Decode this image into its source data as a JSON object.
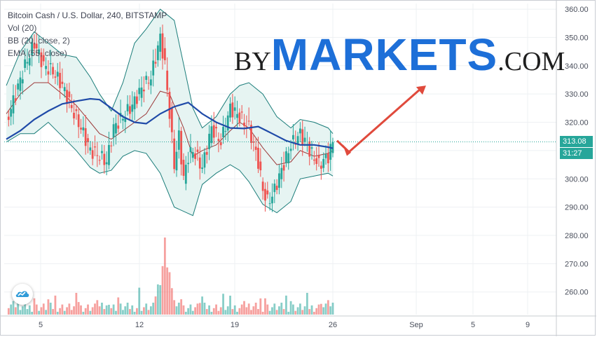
{
  "legend": {
    "title": "Bitcoin Cash / U.S. Dollar, 240, BITSTAMP",
    "vol": "Vol (20)",
    "bb": "BB (20, close, 2)",
    "ema": "EMA (55, close)"
  },
  "brand": {
    "by": "BY",
    "markets": "MARKETS",
    "com": ".COM"
  },
  "price_tag": {
    "price": "313.08",
    "countdown": "31:27",
    "color": "#26a69a"
  },
  "colors": {
    "up": "#26a69a",
    "down": "#ef5350",
    "ema": "#1f4aa8",
    "bb_mid": "#9c3a3a",
    "bb_band": "#1b7d7a",
    "bb_fill": "#e6f4f2",
    "arrow": "#e04a3c",
    "dotted": "#26a69a"
  },
  "chart_data": {
    "type": "candlestick",
    "title": "Bitcoin Cash / U.S. Dollar, 240, BITSTAMP",
    "ylim": [
      252,
      362
    ],
    "y_ticks": [
      "360.00",
      "350.00",
      "340.00",
      "330.00",
      "320.00",
      "310.00",
      "300.00",
      "290.00",
      "280.00",
      "270.00",
      "260.00"
    ],
    "x_ticks": [
      "5",
      "12",
      "19",
      "26",
      "Sep",
      "5",
      "9"
    ],
    "last_price": 313.08,
    "series": [
      {
        "name": "EMA (55, close)",
        "type": "line",
        "x": [
          0,
          6,
          12,
          18,
          24,
          30,
          36,
          40,
          45,
          50,
          55,
          60,
          66,
          72,
          78,
          84,
          90,
          96,
          102,
          108,
          114,
          120,
          126,
          132,
          138,
          140
        ],
        "values": [
          314,
          317,
          321,
          324,
          326.5,
          327.5,
          328.3,
          328,
          325,
          322,
          320,
          319.5,
          323,
          325.5,
          327,
          323,
          320,
          318,
          317.8,
          318.5,
          316,
          313.5,
          312,
          312,
          311.2,
          310.8
        ]
      },
      {
        "name": "BB upper",
        "type": "line",
        "x": [
          0,
          6,
          12,
          18,
          24,
          30,
          36,
          40,
          45,
          50,
          55,
          60,
          66,
          72,
          80,
          84,
          90,
          96,
          100,
          104,
          110,
          116,
          122,
          126,
          132,
          138,
          140
        ],
        "values": [
          333,
          345,
          352,
          348,
          344,
          343,
          336,
          330,
          324,
          334,
          348,
          353,
          360,
          356,
          325,
          318,
          322,
          330,
          333,
          334,
          330,
          322,
          318,
          321,
          320,
          318,
          316
        ]
      },
      {
        "name": "BB lower",
        "type": "line",
        "x": [
          0,
          6,
          12,
          18,
          24,
          30,
          36,
          40,
          45,
          50,
          55,
          60,
          66,
          72,
          80,
          84,
          90,
          96,
          100,
          104,
          110,
          116,
          122,
          126,
          132,
          138,
          140
        ],
        "values": [
          313,
          316,
          316,
          320,
          315,
          310,
          304,
          302,
          303,
          308,
          310,
          309,
          302,
          290,
          287,
          298,
          302,
          305,
          303,
          299,
          291,
          288,
          292,
          300,
          301,
          302,
          301
        ]
      },
      {
        "name": "BB basis",
        "type": "line",
        "x": [
          0,
          6,
          12,
          18,
          24,
          30,
          36,
          40,
          45,
          50,
          55,
          60,
          66,
          70,
          76,
          80,
          84,
          90,
          96,
          100,
          104,
          110,
          116,
          122,
          126,
          132,
          138,
          140
        ],
        "values": [
          323,
          330,
          334,
          334,
          330,
          326,
          320,
          316,
          314,
          317,
          320,
          323,
          331,
          330,
          318,
          308,
          310,
          312,
          317,
          320,
          318,
          311,
          305,
          306,
          310,
          308,
          309,
          310
        ]
      },
      {
        "name": "Close",
        "type": "line",
        "x": [
          0,
          4,
          8,
          12,
          16,
          20,
          24,
          28,
          32,
          36,
          40,
          43,
          46,
          50,
          54,
          58,
          62,
          66,
          68,
          70,
          72,
          74,
          76,
          78,
          80,
          84,
          88,
          92,
          96,
          100,
          104,
          108,
          110,
          112,
          114,
          118,
          122,
          126,
          130,
          134,
          138,
          140
        ],
        "values": [
          320,
          330,
          340,
          348,
          340,
          338,
          333,
          325,
          318,
          310,
          308,
          306,
          318,
          322,
          326,
          332,
          336,
          350,
          340,
          323,
          305,
          315,
          300,
          308,
          310,
          304,
          318,
          313,
          325,
          322,
          318,
          306,
          296,
          292,
          294,
          303,
          312,
          316,
          310,
          305,
          308,
          313
        ]
      }
    ],
    "volume": {
      "note": "bars at bottom, peak around x=68"
    }
  }
}
